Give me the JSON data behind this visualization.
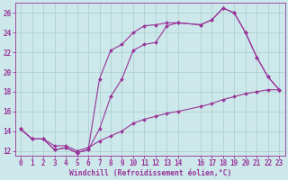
{
  "xlabel": "Windchill (Refroidissement éolien,°C)",
  "background_color": "#cce8ea",
  "grid_color": "#aacccc",
  "line_color": "#993399",
  "xlim": [
    -0.5,
    23.5
  ],
  "ylim": [
    11.5,
    27.0
  ],
  "yticks": [
    12,
    14,
    16,
    18,
    20,
    22,
    24,
    26
  ],
  "xticks": [
    0,
    1,
    2,
    3,
    4,
    5,
    6,
    7,
    8,
    9,
    10,
    11,
    12,
    13,
    14,
    16,
    17,
    18,
    19,
    20,
    21,
    22,
    23
  ],
  "line1_x": [
    0,
    1,
    2,
    3,
    4,
    5,
    6,
    7,
    8,
    9,
    10,
    11,
    12,
    13,
    14,
    16,
    17,
    18,
    19,
    20,
    21,
    22,
    23
  ],
  "line1_y": [
    14.2,
    13.2,
    13.2,
    12.1,
    12.3,
    11.8,
    12.1,
    19.3,
    22.2,
    22.8,
    24.0,
    24.7,
    24.8,
    25.0,
    25.0,
    24.8,
    25.3,
    26.5,
    26.0,
    24.0,
    21.5,
    19.5,
    18.2
  ],
  "line2_x": [
    0,
    1,
    2,
    3,
    4,
    5,
    6,
    7,
    8,
    9,
    10,
    11,
    12,
    13,
    14,
    16,
    17,
    18,
    19,
    20,
    21,
    22,
    23
  ],
  "line2_y": [
    14.2,
    13.2,
    13.2,
    12.1,
    12.3,
    11.8,
    12.1,
    14.2,
    17.5,
    19.3,
    22.2,
    22.8,
    23.0,
    24.7,
    25.0,
    24.8,
    25.3,
    26.5,
    26.0,
    24.0,
    21.5,
    19.5,
    18.2
  ],
  "line3_x": [
    0,
    1,
    2,
    3,
    4,
    5,
    6,
    7,
    8,
    9,
    10,
    11,
    12,
    13,
    14,
    16,
    17,
    18,
    19,
    20,
    21,
    22,
    23
  ],
  "line3_y": [
    14.2,
    13.2,
    13.2,
    12.5,
    12.5,
    12.0,
    12.3,
    13.0,
    13.5,
    14.0,
    14.8,
    15.2,
    15.5,
    15.8,
    16.0,
    16.5,
    16.8,
    17.2,
    17.5,
    17.8,
    18.0,
    18.2,
    18.2
  ]
}
